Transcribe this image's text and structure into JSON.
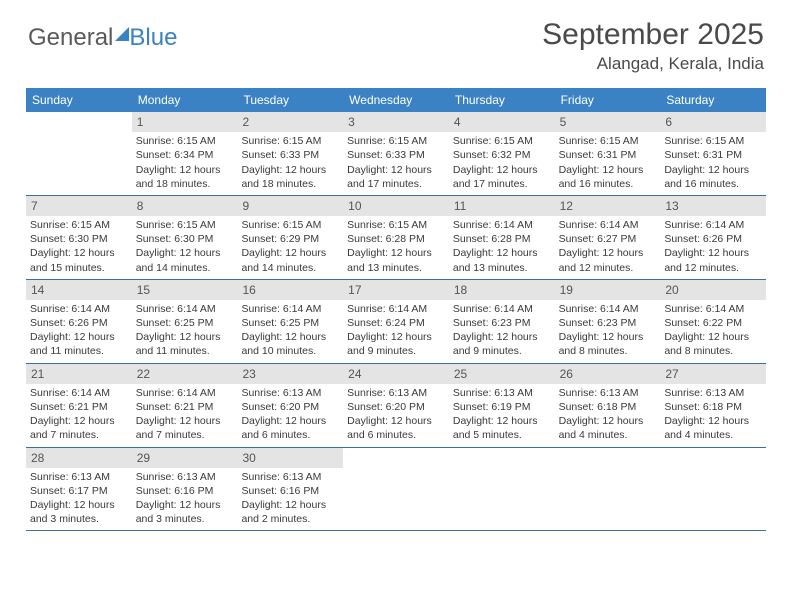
{
  "logo": {
    "part1": "General",
    "part2": "Blue"
  },
  "title": "September 2025",
  "location": "Alangad, Kerala, India",
  "colors": {
    "header_bg": "#3b82c4",
    "header_text": "#ffffff",
    "daynum_bg": "#e4e4e4",
    "daynum_text": "#555555",
    "grid_line": "#3b6fa0",
    "body_text": "#3a3a3a",
    "title_text": "#4a4a4a"
  },
  "day_names": [
    "Sunday",
    "Monday",
    "Tuesday",
    "Wednesday",
    "Thursday",
    "Friday",
    "Saturday"
  ],
  "weeks": [
    [
      {
        "n": "",
        "sr": "",
        "ss": "",
        "dl": ""
      },
      {
        "n": "1",
        "sr": "Sunrise: 6:15 AM",
        "ss": "Sunset: 6:34 PM",
        "dl": "Daylight: 12 hours and 18 minutes."
      },
      {
        "n": "2",
        "sr": "Sunrise: 6:15 AM",
        "ss": "Sunset: 6:33 PM",
        "dl": "Daylight: 12 hours and 18 minutes."
      },
      {
        "n": "3",
        "sr": "Sunrise: 6:15 AM",
        "ss": "Sunset: 6:33 PM",
        "dl": "Daylight: 12 hours and 17 minutes."
      },
      {
        "n": "4",
        "sr": "Sunrise: 6:15 AM",
        "ss": "Sunset: 6:32 PM",
        "dl": "Daylight: 12 hours and 17 minutes."
      },
      {
        "n": "5",
        "sr": "Sunrise: 6:15 AM",
        "ss": "Sunset: 6:31 PM",
        "dl": "Daylight: 12 hours and 16 minutes."
      },
      {
        "n": "6",
        "sr": "Sunrise: 6:15 AM",
        "ss": "Sunset: 6:31 PM",
        "dl": "Daylight: 12 hours and 16 minutes."
      }
    ],
    [
      {
        "n": "7",
        "sr": "Sunrise: 6:15 AM",
        "ss": "Sunset: 6:30 PM",
        "dl": "Daylight: 12 hours and 15 minutes."
      },
      {
        "n": "8",
        "sr": "Sunrise: 6:15 AM",
        "ss": "Sunset: 6:30 PM",
        "dl": "Daylight: 12 hours and 14 minutes."
      },
      {
        "n": "9",
        "sr": "Sunrise: 6:15 AM",
        "ss": "Sunset: 6:29 PM",
        "dl": "Daylight: 12 hours and 14 minutes."
      },
      {
        "n": "10",
        "sr": "Sunrise: 6:15 AM",
        "ss": "Sunset: 6:28 PM",
        "dl": "Daylight: 12 hours and 13 minutes."
      },
      {
        "n": "11",
        "sr": "Sunrise: 6:14 AM",
        "ss": "Sunset: 6:28 PM",
        "dl": "Daylight: 12 hours and 13 minutes."
      },
      {
        "n": "12",
        "sr": "Sunrise: 6:14 AM",
        "ss": "Sunset: 6:27 PM",
        "dl": "Daylight: 12 hours and 12 minutes."
      },
      {
        "n": "13",
        "sr": "Sunrise: 6:14 AM",
        "ss": "Sunset: 6:26 PM",
        "dl": "Daylight: 12 hours and 12 minutes."
      }
    ],
    [
      {
        "n": "14",
        "sr": "Sunrise: 6:14 AM",
        "ss": "Sunset: 6:26 PM",
        "dl": "Daylight: 12 hours and 11 minutes."
      },
      {
        "n": "15",
        "sr": "Sunrise: 6:14 AM",
        "ss": "Sunset: 6:25 PM",
        "dl": "Daylight: 12 hours and 11 minutes."
      },
      {
        "n": "16",
        "sr": "Sunrise: 6:14 AM",
        "ss": "Sunset: 6:25 PM",
        "dl": "Daylight: 12 hours and 10 minutes."
      },
      {
        "n": "17",
        "sr": "Sunrise: 6:14 AM",
        "ss": "Sunset: 6:24 PM",
        "dl": "Daylight: 12 hours and 9 minutes."
      },
      {
        "n": "18",
        "sr": "Sunrise: 6:14 AM",
        "ss": "Sunset: 6:23 PM",
        "dl": "Daylight: 12 hours and 9 minutes."
      },
      {
        "n": "19",
        "sr": "Sunrise: 6:14 AM",
        "ss": "Sunset: 6:23 PM",
        "dl": "Daylight: 12 hours and 8 minutes."
      },
      {
        "n": "20",
        "sr": "Sunrise: 6:14 AM",
        "ss": "Sunset: 6:22 PM",
        "dl": "Daylight: 12 hours and 8 minutes."
      }
    ],
    [
      {
        "n": "21",
        "sr": "Sunrise: 6:14 AM",
        "ss": "Sunset: 6:21 PM",
        "dl": "Daylight: 12 hours and 7 minutes."
      },
      {
        "n": "22",
        "sr": "Sunrise: 6:14 AM",
        "ss": "Sunset: 6:21 PM",
        "dl": "Daylight: 12 hours and 7 minutes."
      },
      {
        "n": "23",
        "sr": "Sunrise: 6:13 AM",
        "ss": "Sunset: 6:20 PM",
        "dl": "Daylight: 12 hours and 6 minutes."
      },
      {
        "n": "24",
        "sr": "Sunrise: 6:13 AM",
        "ss": "Sunset: 6:20 PM",
        "dl": "Daylight: 12 hours and 6 minutes."
      },
      {
        "n": "25",
        "sr": "Sunrise: 6:13 AM",
        "ss": "Sunset: 6:19 PM",
        "dl": "Daylight: 12 hours and 5 minutes."
      },
      {
        "n": "26",
        "sr": "Sunrise: 6:13 AM",
        "ss": "Sunset: 6:18 PM",
        "dl": "Daylight: 12 hours and 4 minutes."
      },
      {
        "n": "27",
        "sr": "Sunrise: 6:13 AM",
        "ss": "Sunset: 6:18 PM",
        "dl": "Daylight: 12 hours and 4 minutes."
      }
    ],
    [
      {
        "n": "28",
        "sr": "Sunrise: 6:13 AM",
        "ss": "Sunset: 6:17 PM",
        "dl": "Daylight: 12 hours and 3 minutes."
      },
      {
        "n": "29",
        "sr": "Sunrise: 6:13 AM",
        "ss": "Sunset: 6:16 PM",
        "dl": "Daylight: 12 hours and 3 minutes."
      },
      {
        "n": "30",
        "sr": "Sunrise: 6:13 AM",
        "ss": "Sunset: 6:16 PM",
        "dl": "Daylight: 12 hours and 2 minutes."
      },
      {
        "n": "",
        "sr": "",
        "ss": "",
        "dl": ""
      },
      {
        "n": "",
        "sr": "",
        "ss": "",
        "dl": ""
      },
      {
        "n": "",
        "sr": "",
        "ss": "",
        "dl": ""
      },
      {
        "n": "",
        "sr": "",
        "ss": "",
        "dl": ""
      }
    ]
  ]
}
